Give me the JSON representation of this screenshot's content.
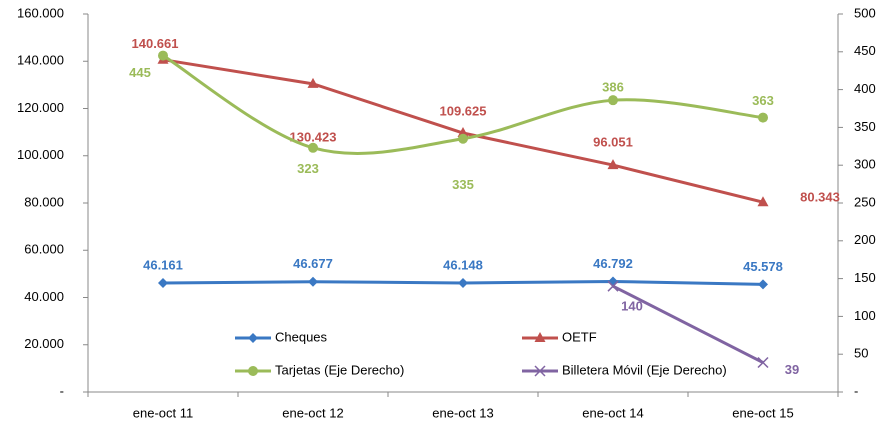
{
  "chart_data": {
    "type": "line",
    "categories": [
      "ene-oct 11",
      "ene-oct 12",
      "ene-oct 13",
      "ene-oct 14",
      "ene-oct 15"
    ],
    "series": [
      {
        "name": "Cheques",
        "color": "#3a78c3",
        "marker": "diamond",
        "values": [
          46161,
          46677,
          46148,
          46792,
          45578
        ],
        "value_labels": [
          "46.161",
          "46.677",
          "46.148",
          "46.792",
          "45.578"
        ]
      },
      {
        "name": "OETF",
        "color": "#c0504d",
        "marker": "triangle",
        "values": [
          140661,
          130423,
          109625,
          96051,
          80343
        ],
        "value_labels": [
          "140.661",
          "130.423",
          "109.625",
          "96.051",
          "80.343"
        ]
      },
      {
        "name": "Tarjetas (Eje Derecho)",
        "color": "#9bbb59",
        "marker": "circle",
        "smooth": true,
        "axis": "y2",
        "values": [
          445,
          323,
          335,
          386,
          363
        ]
      },
      {
        "name": "Billetera Móvil (Eje Derecho)",
        "color": "#8064a2",
        "marker": "x",
        "axis": "y2",
        "values": [
          null,
          null,
          null,
          140,
          39
        ]
      }
    ],
    "ylim": [
      0,
      160000
    ],
    "yticks": [
      {
        "value": 0,
        "label": "-"
      },
      {
        "value": 20000,
        "label": "20.000"
      },
      {
        "value": 40000,
        "label": "40.000"
      },
      {
        "value": 60000,
        "label": "60.000"
      },
      {
        "value": 80000,
        "label": "80.000"
      },
      {
        "value": 100000,
        "label": "100.000"
      },
      {
        "value": 120000,
        "label": "120.000"
      },
      {
        "value": 140000,
        "label": "140.000"
      },
      {
        "value": 160000,
        "label": "160.000"
      }
    ],
    "y2lim": [
      0,
      500
    ],
    "y2ticks": [
      {
        "value": 0,
        "label": "-"
      },
      50,
      100,
      150,
      200,
      250,
      300,
      350,
      400,
      450,
      500
    ],
    "legend": "bottom"
  }
}
